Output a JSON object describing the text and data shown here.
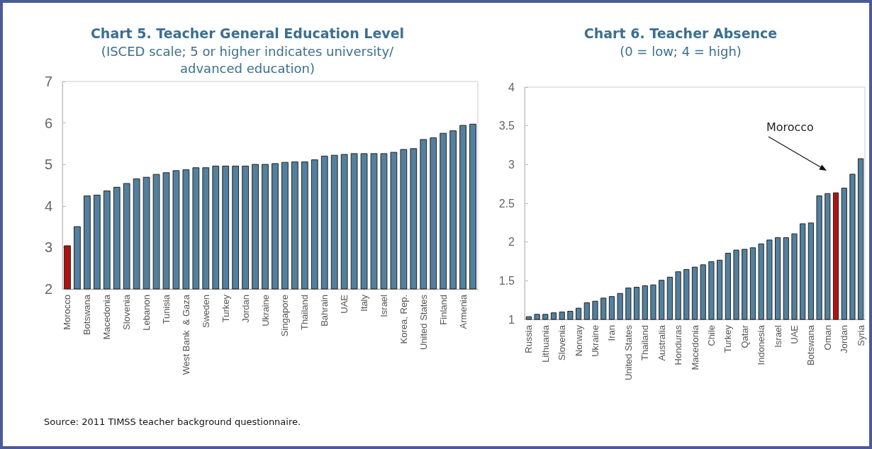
{
  "chart_data": [
    {
      "type": "bar",
      "title": "Chart 5. Teacher General Education Level",
      "subtitle": "(ISCED scale; 5 or higher indicates university/advanced education)",
      "categories": [
        "Morocco",
        null,
        "Botswana",
        null,
        "Macedonia",
        null,
        "Slovenia",
        null,
        "Lebanon",
        null,
        "Tunisia",
        null,
        "West Bank  & Gaza",
        null,
        "Sweden",
        null,
        "Turkey",
        null,
        "Jordan",
        null,
        "Ukraine",
        null,
        "Singapore",
        null,
        "Thailand",
        null,
        "Bahrain",
        null,
        "UAE",
        null,
        "Italy",
        null,
        "Israel",
        null,
        "Korea, Rep.",
        null,
        "United States",
        null,
        "Finland",
        null,
        "Armenia",
        null
      ],
      "values": [
        3.05,
        3.51,
        4.25,
        4.27,
        4.37,
        4.46,
        4.55,
        4.66,
        4.7,
        4.77,
        4.81,
        4.86,
        4.88,
        4.93,
        4.93,
        4.97,
        4.97,
        4.97,
        4.97,
        5.01,
        5.01,
        5.03,
        5.06,
        5.07,
        5.07,
        5.12,
        5.21,
        5.23,
        5.25,
        5.27,
        5.27,
        5.27,
        5.27,
        5.3,
        5.37,
        5.39,
        5.61,
        5.65,
        5.76,
        5.82,
        5.95,
        5.98
      ],
      "colors": [
        "#b01212",
        "#52809e",
        "#52809e",
        "#52809e",
        "#52809e",
        "#52809e",
        "#52809e",
        "#52809e",
        "#52809e",
        "#52809e",
        "#52809e",
        "#52809e",
        "#52809e",
        "#52809e",
        "#52809e",
        "#52809e",
        "#52809e",
        "#52809e",
        "#52809e",
        "#52809e",
        "#52809e",
        "#52809e",
        "#52809e",
        "#52809e",
        "#52809e",
        "#52809e",
        "#52809e",
        "#52809e",
        "#52809e",
        "#52809e",
        "#52809e",
        "#52809e",
        "#52809e",
        "#52809e",
        "#52809e",
        "#52809e",
        "#52809e",
        "#52809e",
        "#52809e",
        "#52809e",
        "#52809e",
        "#52809e"
      ],
      "ylim": [
        2,
        7
      ],
      "yticks": [
        2,
        3,
        4,
        5,
        6,
        7
      ],
      "annotations": [
        "Source: 2011 TIMSS teacher background questionnaire."
      ]
    },
    {
      "type": "bar",
      "title": "Chart 6. Teacher Absence",
      "subtitle": "(0 = low; 4 = high)",
      "categories": [
        "Russia",
        null,
        "Lithuania",
        null,
        "Slovenia",
        null,
        "Norway",
        null,
        "Ukraine",
        null,
        "Iran",
        null,
        "United States",
        null,
        "Thailand",
        null,
        "Australia",
        null,
        "Honduras",
        null,
        "Macedonia",
        null,
        "Chile",
        null,
        "Turkey",
        null,
        "Qatar",
        null,
        "Indonesia",
        null,
        "Israel",
        null,
        "UAE",
        null,
        "Botswana",
        null,
        "Oman",
        null,
        "Jordan",
        null,
        "Syria"
      ],
      "values": [
        1.04,
        1.07,
        1.07,
        1.09,
        1.1,
        1.11,
        1.15,
        1.22,
        1.24,
        1.28,
        1.3,
        1.34,
        1.41,
        1.42,
        1.44,
        1.45,
        1.51,
        1.55,
        1.62,
        1.65,
        1.68,
        1.71,
        1.75,
        1.77,
        1.86,
        1.9,
        1.91,
        1.93,
        1.98,
        2.03,
        2.06,
        2.06,
        2.11,
        2.24,
        2.25,
        2.6,
        2.63,
        2.64,
        2.7,
        2.88,
        3.08
      ],
      "colors": [
        "#52809e",
        "#52809e",
        "#52809e",
        "#52809e",
        "#52809e",
        "#52809e",
        "#52809e",
        "#52809e",
        "#52809e",
        "#52809e",
        "#52809e",
        "#52809e",
        "#52809e",
        "#52809e",
        "#52809e",
        "#52809e",
        "#52809e",
        "#52809e",
        "#52809e",
        "#52809e",
        "#52809e",
        "#52809e",
        "#52809e",
        "#52809e",
        "#52809e",
        "#52809e",
        "#52809e",
        "#52809e",
        "#52809e",
        "#52809e",
        "#52809e",
        "#52809e",
        "#52809e",
        "#52809e",
        "#52809e",
        "#52809e",
        "#52809e",
        "#b01212",
        "#52809e",
        "#52809e",
        "#52809e"
      ],
      "ylim": [
        1,
        4
      ],
      "yticks": [
        1,
        1.5,
        2,
        2.5,
        3,
        3.5,
        4
      ],
      "annotations": [
        "Morocco"
      ]
    }
  ]
}
